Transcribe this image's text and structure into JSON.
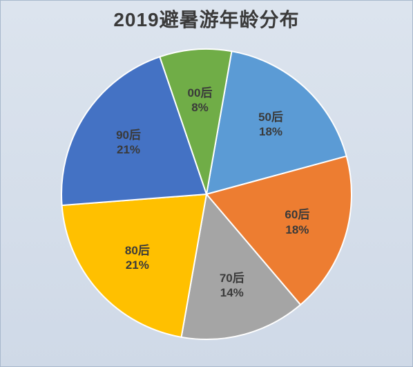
{
  "chart": {
    "type": "pie",
    "title": "2019避暑游年龄分布",
    "title_fontsize": 28,
    "title_color": "#3a3a3a",
    "background_gradient": [
      "#dce4ee",
      "#cfd9e7"
    ],
    "label_fontsize": 17,
    "label_color": "#3a3a3a",
    "radius": 210,
    "start_angle_deg": -80,
    "slices": [
      {
        "name": "50后",
        "value": 18,
        "percent_label": "18%",
        "color": "#5b9bd5"
      },
      {
        "name": "60后",
        "value": 18,
        "percent_label": "18%",
        "color": "#ed7d31"
      },
      {
        "name": "70后",
        "value": 14,
        "percent_label": "14%",
        "color": "#a5a5a5"
      },
      {
        "name": "80后",
        "value": 21,
        "percent_label": "21%",
        "color": "#ffc000"
      },
      {
        "name": "90后",
        "value": 21,
        "percent_label": "21%",
        "color": "#4472c4"
      },
      {
        "name": "00后",
        "value": 8,
        "percent_label": "8%",
        "color": "#70ad47"
      }
    ]
  }
}
